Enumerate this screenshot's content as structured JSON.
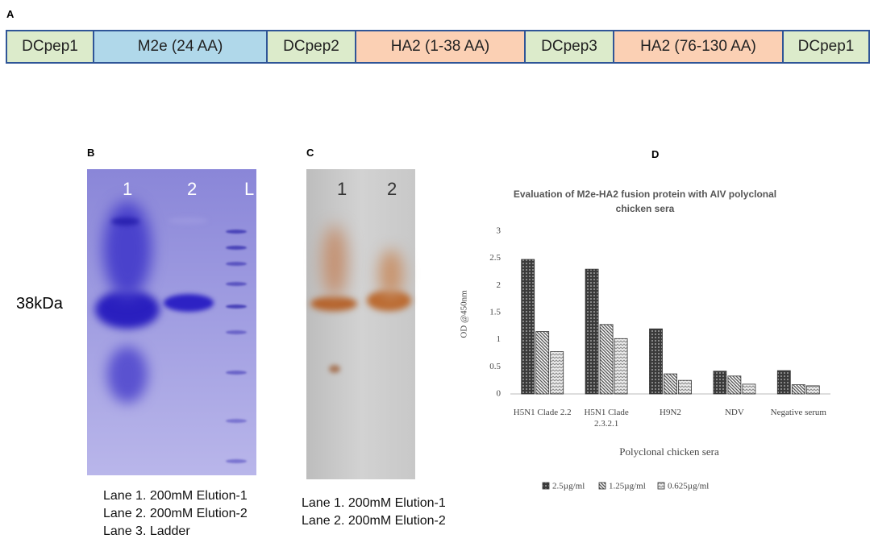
{
  "panel_a": {
    "label": "A",
    "segments": [
      "DCpep1",
      "M2e (24 AA)",
      "DCpep2",
      "HA2 (1-38 AA)",
      "DCpep3",
      "HA2 (76-130 AA)",
      "DCpep1"
    ]
  },
  "panel_b": {
    "label": "B",
    "lanes": [
      "1",
      "2",
      "L"
    ],
    "marker": "38kDa",
    "legend": [
      "Lane 1. 200mM Elution-1",
      "Lane 2. 200mM Elution-2",
      "Lane 3. Ladder"
    ]
  },
  "panel_c": {
    "label": "C",
    "lanes": [
      "1",
      "2"
    ],
    "legend": [
      "Lane 1. 200mM Elution-1",
      "Lane 2. 200mM Elution-2"
    ]
  },
  "chart_data": {
    "type": "bar",
    "panel_label": "D",
    "title": "Evaluation of M2e-HA2 fusion protein with AIV polyclonal chicken sera",
    "x_label": "Polyclonal chicken sera",
    "y_label": "OD @450nm",
    "categories": [
      "H5N1 Clade 2.2",
      "H5N1 Clade 2.3.2.1",
      "H9N2",
      "NDV",
      "Negative serum"
    ],
    "series": [
      {
        "name": "2.5µg/ml",
        "color": "#3a3a3a",
        "values": [
          2.48,
          2.3,
          1.2,
          0.42,
          0.43
        ]
      },
      {
        "name": "1.25µg/ml",
        "color": "#5a5a5a",
        "values": [
          1.15,
          1.28,
          0.37,
          0.33,
          0.17
        ]
      },
      {
        "name": "0.625µg/ml",
        "color": "#8a8a8a",
        "values": [
          0.78,
          1.02,
          0.25,
          0.18,
          0.15
        ]
      }
    ],
    "ylim": [
      0,
      3
    ],
    "yticks": [
      0,
      0.5,
      1,
      1.5,
      2,
      2.5,
      3
    ],
    "grid": false
  }
}
